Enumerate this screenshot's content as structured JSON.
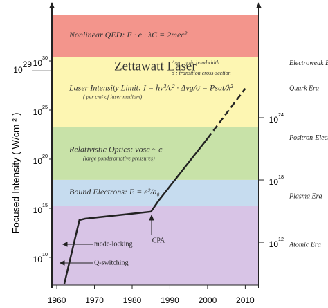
{
  "chart_data": {
    "type": "line",
    "y_label": "Focused Intensity ( W/cm ² )",
    "log": true,
    "xlim": [
      1958.7,
      2013.6
    ],
    "xticks": [
      1960,
      1970,
      1980,
      1990,
      2000,
      2010
    ],
    "ylim": [
      15000000.0,
      6.2e+34
    ],
    "yticks": [
      {
        "value": 10000000000.0,
        "label": "10",
        "power": "10"
      },
      {
        "value": 1000000000000000.0,
        "label": "10",
        "power": "15"
      },
      {
        "value": 1e+20,
        "label": "10",
        "power": "20"
      },
      {
        "value": 1e+25,
        "label": "10",
        "power": "25"
      },
      {
        "value": 1e+30,
        "label": "10",
        "power": "30"
      }
    ],
    "y2lim": [
      74000000.0,
      1e+34
    ],
    "y2ticks": [
      {
        "value": 1000000000000.0,
        "label": "10",
        "power": "12"
      },
      {
        "value": 1e+18,
        "label": "10",
        "power": "18"
      },
      {
        "value": 1e+24,
        "label": "10",
        "power": "24"
      }
    ],
    "y_marker": {
      "value": 1e+29,
      "label": "10",
      "power": "29",
      "text": "Zettawatt Laser"
    },
    "bands": [
      {
        "from": 15000000.0,
        "to": 1900000000000000.0,
        "color": "#d8c4e6"
      },
      {
        "from": 1900000000000000.0,
        "to": 7.8e+17,
        "color": "#c6dcef",
        "text": "Bound Electrons:  E = e²/a₀"
      },
      {
        "from": 7.8e+17,
        "to": 2e+23,
        "color": "#c8e2a8",
        "text": "Relativistic Optics:  vosc ~ c",
        "note": "(large ponderomotive pressures)"
      },
      {
        "from": 2e+23,
        "to": 2.6e+30,
        "color": "#fdf6b2",
        "text": "Laser Intensity Limit:  I = hν³/c² · Δνg/σ = Psat/λ²",
        "note": "( per cm² of laser medium)"
      },
      {
        "from": 2.6e+30,
        "to": 6.2e+34,
        "color": "#f3958c",
        "text": "Nonlinear QED:  E · e · λC = 2mec²"
      }
    ],
    "definitions": [
      "Δνg : gain bandwidth",
      "σ : transition cross-section"
    ],
    "series": [
      {
        "color": "#222222",
        "dash": false,
        "x": [
          1962,
          1966,
          1967.5,
          1985,
          1987,
          2000
        ],
        "values": [
          21000000.0,
          63000000000000.0,
          87000000000000.0,
          450000000000000.0,
          5900000000000000.0,
          1.3e+22
        ]
      },
      {
        "color": "#222222",
        "dash": true,
        "x": [
          2000,
          2010
        ],
        "values": [
          1.3e+22,
          1.6e+27
        ]
      }
    ],
    "annotations": [
      "mode-locking",
      "Q-switching",
      "CPA"
    ],
    "eras": [
      "Electroweak Era",
      "Quark Era",
      "Positron-Electron Era",
      "Plasma Era",
      "Atomic Era"
    ]
  }
}
